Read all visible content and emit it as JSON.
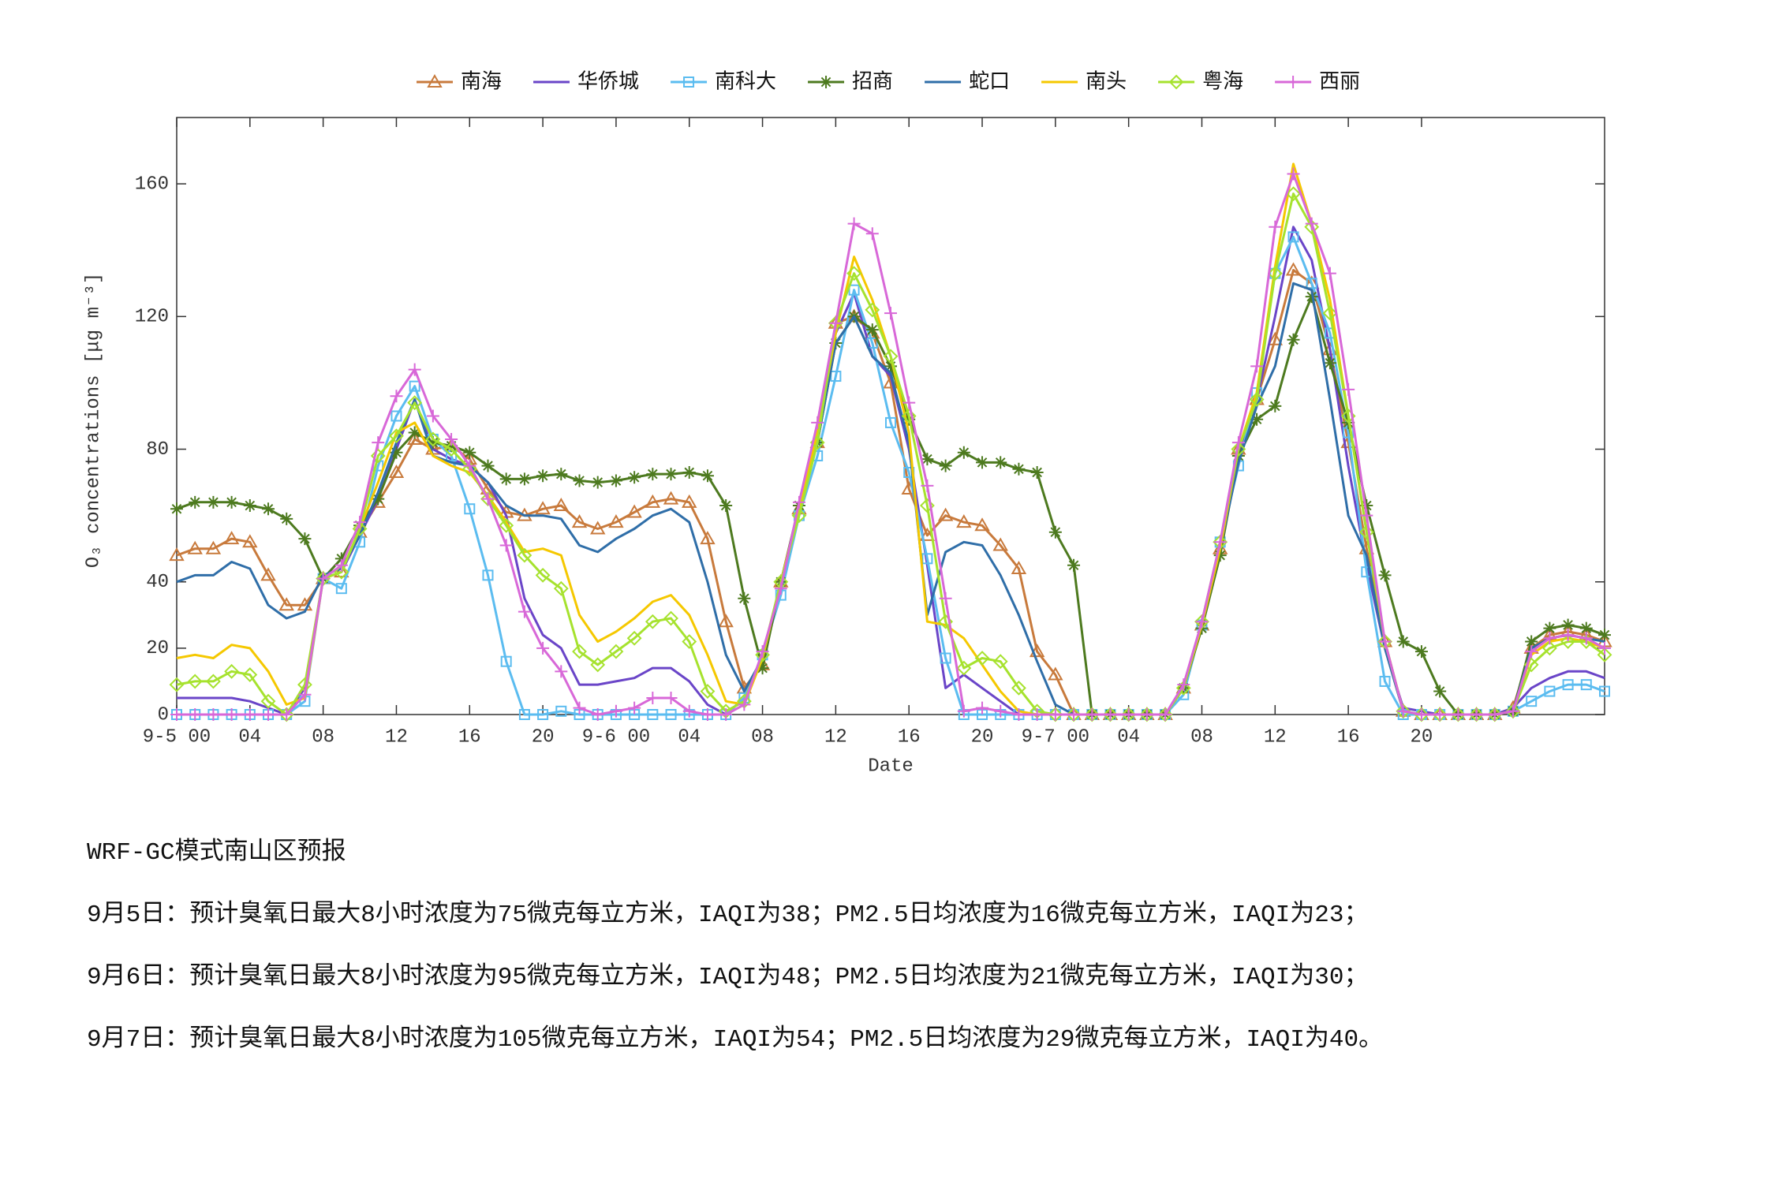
{
  "chart_data": {
    "type": "line",
    "xlabel": "Date",
    "ylabel": "O₃ concentrations [μg m⁻³]",
    "legend": "top",
    "grid": false,
    "categories": [
      "9-5 00",
      null,
      null,
      null,
      "04",
      null,
      null,
      null,
      "08",
      null,
      null,
      null,
      "12",
      null,
      null,
      null,
      "16",
      null,
      null,
      null,
      "20",
      null,
      null,
      null,
      "9-6 00",
      null,
      null,
      null,
      "04",
      null,
      null,
      null,
      "08",
      null,
      null,
      null,
      "12",
      null,
      null,
      null,
      "16",
      null,
      null,
      null,
      "20",
      null,
      null,
      null,
      "9-7 00",
      null,
      null,
      null,
      "04",
      null,
      null,
      null,
      "08",
      null,
      null,
      null,
      "12",
      null,
      null,
      null,
      "16",
      null,
      null,
      null,
      "20",
      null,
      null,
      null,
      null,
      null,
      null,
      null,
      null,
      null,
      null
    ],
    "ylim": [
      0,
      180
    ],
    "yticks": [
      0,
      20,
      40,
      80,
      120,
      160
    ],
    "series": [
      {
        "name": "南海",
        "color": "#c87a3c",
        "marker": "triangle",
        "values": [
          48,
          50,
          50,
          53,
          52,
          42,
          33,
          33,
          41,
          43,
          55,
          64,
          73,
          83,
          80,
          81,
          77,
          68,
          61,
          60,
          62,
          63,
          58,
          56,
          58,
          61,
          64,
          65,
          64,
          53,
          28,
          8,
          15,
          40,
          62,
          82,
          118,
          120,
          115,
          100,
          68,
          54,
          60,
          58,
          57,
          51,
          44,
          19,
          12,
          0,
          0,
          0,
          0,
          0,
          0,
          8,
          27,
          50,
          80,
          95,
          113,
          134,
          130,
          110,
          82,
          50,
          22,
          1,
          0,
          0,
          0,
          0,
          0,
          2,
          20,
          24,
          25,
          24,
          22
        ]
      },
      {
        "name": "华侨城",
        "color": "#6a45c8",
        "values": [
          5,
          5,
          5,
          5,
          4,
          2,
          0,
          8,
          41,
          43,
          54,
          65,
          80,
          95,
          80,
          77,
          75,
          70,
          60,
          35,
          24,
          20,
          9,
          9,
          10,
          11,
          14,
          14,
          10,
          3,
          0,
          5,
          18,
          38,
          62,
          85,
          115,
          127,
          108,
          102,
          80,
          45,
          8,
          12,
          8,
          4,
          0,
          0,
          0,
          0,
          0,
          0,
          0,
          0,
          0,
          8,
          27,
          50,
          78,
          95,
          120,
          147,
          137,
          110,
          75,
          45,
          20,
          2,
          1,
          0,
          0,
          0,
          0,
          2,
          8,
          11,
          13,
          13,
          11
        ]
      },
      {
        "name": "南科大",
        "color": "#5bbcf0",
        "marker": "square",
        "values": [
          0,
          0,
          0,
          0,
          0,
          0,
          0,
          4,
          41,
          38,
          52,
          75,
          90,
          99,
          83,
          78,
          62,
          42,
          16,
          0,
          0,
          1,
          0,
          0,
          0,
          0,
          0,
          0,
          0,
          0,
          0,
          5,
          18,
          36,
          60,
          78,
          102,
          128,
          112,
          88,
          73,
          47,
          17,
          0,
          0,
          0,
          0,
          0,
          0,
          0,
          0,
          0,
          0,
          0,
          0,
          6,
          27,
          52,
          75,
          97,
          133,
          144,
          130,
          115,
          85,
          43,
          10,
          0,
          0,
          0,
          0,
          0,
          0,
          1,
          4,
          7,
          9,
          9,
          7
        ]
      },
      {
        "name": "招商",
        "color": "#4d7a1f",
        "marker": "star",
        "values": [
          62,
          64,
          64,
          64,
          63,
          62,
          59,
          53,
          41,
          47,
          57,
          65,
          79,
          85,
          82,
          81,
          79,
          75,
          71,
          71,
          72,
          72.5,
          70.5,
          70,
          70.5,
          71.5,
          72.5,
          72.5,
          73,
          72,
          63,
          35,
          14,
          40,
          63,
          82,
          112,
          120,
          116,
          105,
          89,
          77,
          75,
          79,
          76,
          76,
          74,
          73,
          55,
          45,
          0,
          0,
          0,
          0,
          0,
          8,
          26,
          48,
          78,
          89,
          93,
          113,
          126,
          106,
          88,
          63,
          42,
          22,
          19,
          7,
          0,
          0,
          0,
          1,
          22,
          26,
          27,
          26,
          24
        ]
      },
      {
        "name": "蛇口",
        "color": "#2f6ea8",
        "values": [
          40,
          42,
          42,
          46,
          44,
          33,
          29,
          31,
          42,
          44,
          54,
          67,
          82,
          95,
          78,
          76,
          75,
          70,
          63,
          60,
          60,
          59,
          51,
          49,
          53,
          56,
          60,
          62,
          58,
          40,
          18,
          7,
          17,
          40,
          62,
          82,
          112,
          120,
          108,
          103,
          82,
          30,
          49,
          52,
          51,
          42,
          30,
          16,
          3,
          0,
          0,
          0,
          0,
          0,
          0,
          8,
          27,
          50,
          76,
          93,
          105,
          130,
          128,
          95,
          60,
          48,
          20,
          1,
          0,
          0,
          0,
          0,
          0,
          1,
          20,
          23,
          24,
          23,
          22
        ]
      },
      {
        "name": "南头",
        "color": "#f5c800",
        "values": [
          17,
          18,
          17,
          21,
          20,
          13,
          3,
          5,
          41,
          43,
          56,
          70,
          85,
          88,
          78,
          75,
          73,
          66,
          58,
          49,
          50,
          48,
          30,
          22,
          25,
          29,
          34,
          36,
          30,
          18,
          4,
          3,
          17,
          40,
          62,
          85,
          115,
          138,
          125,
          108,
          85,
          28,
          27,
          23,
          15,
          7,
          1,
          0,
          0,
          0,
          0,
          0,
          0,
          0,
          0,
          8,
          27,
          50,
          80,
          97,
          135,
          166,
          148,
          125,
          90,
          55,
          22,
          1,
          0,
          0,
          0,
          0,
          0,
          1,
          18,
          22,
          23,
          22,
          20
        ]
      },
      {
        "name": "粤海",
        "color": "#a6e22e",
        "marker": "diamond",
        "values": [
          9,
          10,
          10,
          13,
          12,
          4,
          0,
          9,
          41,
          43,
          56,
          78,
          84,
          94,
          83,
          80,
          74,
          65,
          57,
          48,
          42,
          38,
          19,
          15,
          19,
          23,
          28,
          29,
          22,
          7,
          1,
          4,
          18,
          40,
          60,
          82,
          118,
          133,
          122,
          108,
          90,
          63,
          28,
          14,
          17,
          16,
          8,
          1,
          0,
          0,
          0,
          0,
          0,
          0,
          0,
          8,
          28,
          52,
          80,
          95,
          133,
          157,
          147,
          121,
          90,
          55,
          22,
          1,
          0,
          0,
          0,
          0,
          0,
          1,
          15,
          20,
          22,
          22,
          18
        ]
      },
      {
        "name": "西丽",
        "color": "#d868d8",
        "marker": "plus",
        "values": [
          0,
          0,
          0,
          0,
          0,
          0,
          0,
          6,
          41,
          45,
          58,
          82,
          96,
          104,
          90,
          83,
          75,
          65,
          51,
          31,
          20,
          13,
          2,
          0,
          1,
          2,
          5,
          5,
          1,
          0,
          0,
          3,
          19,
          38,
          64,
          88,
          118,
          148,
          145,
          121,
          94,
          69,
          35,
          1,
          2,
          1,
          0,
          0,
          0,
          0,
          0,
          0,
          0,
          0,
          0,
          9,
          28,
          52,
          82,
          105,
          147,
          163,
          148,
          133,
          98,
          60,
          22,
          1,
          0,
          0,
          0,
          0,
          0,
          1,
          19,
          23,
          24,
          23,
          20
        ]
      }
    ]
  },
  "report": {
    "title": "WRF-GC模式南山区预报",
    "lines": [
      "9月5日：预计臭氧日最大8小时浓度为75微克每立方米，IAQI为38；PM2.5日均浓度为16微克每立方米，IAQI为23；",
      "9月6日：预计臭氧日最大8小时浓度为95微克每立方米，IAQI为48；PM2.5日均浓度为21微克每立方米，IAQI为30；",
      "9月7日：预计臭氧日最大8小时浓度为105微克每立方米，IAQI为54；PM2.5日均浓度为29微克每立方米，IAQI为40。"
    ]
  }
}
